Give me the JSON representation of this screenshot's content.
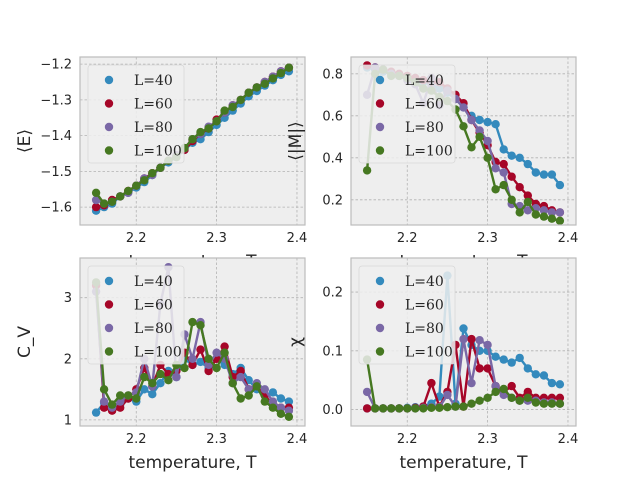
{
  "colors": {
    "c40": "#348ABD",
    "c60": "#A60628",
    "c80": "#7A68A6",
    "c100": "#467821",
    "panel_bg": "#EEEEEE",
    "grid": "#B2B2B2",
    "spine": "#BCBCBC"
  },
  "legend": [
    "L=40",
    "L=60",
    "L=80",
    "L=100"
  ],
  "chart_data": [
    {
      "id": "energy",
      "type": "line",
      "xlabel": "temperature, T",
      "ylabel": "⟨E⟩",
      "xlim": [
        2.13,
        2.41
      ],
      "ylim": [
        -1.65,
        -1.18
      ],
      "xticks": [
        2.2,
        2.3,
        2.4
      ],
      "yticks": [
        -1.6,
        -1.5,
        -1.4,
        -1.3,
        -1.2
      ],
      "ytick_labels": [
        "−1.6",
        "−1.5",
        "−1.4",
        "−1.3",
        "−1.2"
      ],
      "series": [
        {
          "name": "L=40",
          "color": "#348ABD",
          "x": [
            2.15,
            2.16,
            2.17,
            2.18,
            2.19,
            2.2,
            2.21,
            2.22,
            2.23,
            2.24,
            2.25,
            2.26,
            2.27,
            2.28,
            2.29,
            2.3,
            2.31,
            2.32,
            2.33,
            2.34,
            2.35,
            2.36,
            2.37,
            2.38,
            2.39
          ],
          "y": [
            -1.61,
            -1.6,
            -1.59,
            -1.57,
            -1.56,
            -1.545,
            -1.53,
            -1.51,
            -1.49,
            -1.475,
            -1.46,
            -1.44,
            -1.42,
            -1.41,
            -1.39,
            -1.37,
            -1.35,
            -1.33,
            -1.31,
            -1.29,
            -1.275,
            -1.26,
            -1.245,
            -1.23,
            -1.22
          ]
        },
        {
          "name": "L=60",
          "color": "#A60628",
          "x": [
            2.15,
            2.16,
            2.17,
            2.18,
            2.19,
            2.2,
            2.21,
            2.22,
            2.23,
            2.24,
            2.25,
            2.26,
            2.27,
            2.28,
            2.29,
            2.3,
            2.31,
            2.32,
            2.33,
            2.34,
            2.35,
            2.36,
            2.37,
            2.38,
            2.39
          ],
          "y": [
            -1.6,
            -1.595,
            -1.58,
            -1.57,
            -1.555,
            -1.54,
            -1.52,
            -1.505,
            -1.49,
            -1.47,
            -1.455,
            -1.44,
            -1.415,
            -1.395,
            -1.38,
            -1.355,
            -1.335,
            -1.315,
            -1.3,
            -1.28,
            -1.265,
            -1.25,
            -1.235,
            -1.22,
            -1.21
          ]
        },
        {
          "name": "L=80",
          "color": "#7A68A6",
          "x": [
            2.15,
            2.16,
            2.17,
            2.18,
            2.19,
            2.2,
            2.21,
            2.22,
            2.23,
            2.24,
            2.25,
            2.26,
            2.27,
            2.28,
            2.29,
            2.3,
            2.31,
            2.32,
            2.33,
            2.34,
            2.35,
            2.36,
            2.37,
            2.38,
            2.39
          ],
          "y": [
            -1.58,
            -1.59,
            -1.585,
            -1.57,
            -1.56,
            -1.54,
            -1.52,
            -1.51,
            -1.49,
            -1.47,
            -1.455,
            -1.435,
            -1.41,
            -1.395,
            -1.375,
            -1.36,
            -1.335,
            -1.315,
            -1.3,
            -1.28,
            -1.265,
            -1.25,
            -1.235,
            -1.22,
            -1.21
          ]
        },
        {
          "name": "L=100",
          "color": "#467821",
          "x": [
            2.15,
            2.16,
            2.17,
            2.18,
            2.19,
            2.2,
            2.21,
            2.22,
            2.23,
            2.24,
            2.25,
            2.26,
            2.27,
            2.28,
            2.29,
            2.3,
            2.31,
            2.32,
            2.33,
            2.34,
            2.35,
            2.36,
            2.37,
            2.38,
            2.39
          ],
          "y": [
            -1.56,
            -1.59,
            -1.585,
            -1.57,
            -1.555,
            -1.54,
            -1.525,
            -1.505,
            -1.49,
            -1.47,
            -1.46,
            -1.435,
            -1.41,
            -1.39,
            -1.38,
            -1.36,
            -1.33,
            -1.32,
            -1.3,
            -1.28,
            -1.265,
            -1.255,
            -1.24,
            -1.225,
            -1.21
          ]
        }
      ]
    },
    {
      "id": "magnetization",
      "type": "line",
      "xlabel": "temperature, T",
      "ylabel": "⟨|M|⟩",
      "xlim": [
        2.13,
        2.41
      ],
      "ylim": [
        0.08,
        0.88
      ],
      "xticks": [
        2.2,
        2.3,
        2.4
      ],
      "yticks": [
        0.2,
        0.4,
        0.6,
        0.8
      ],
      "ytick_labels": [
        "0.2",
        "0.4",
        "0.6",
        "0.8"
      ],
      "series": [
        {
          "name": "L=40",
          "color": "#348ABD",
          "x": [
            2.15,
            2.16,
            2.17,
            2.18,
            2.19,
            2.2,
            2.21,
            2.22,
            2.23,
            2.24,
            2.25,
            2.26,
            2.27,
            2.28,
            2.29,
            2.3,
            2.31,
            2.32,
            2.33,
            2.34,
            2.35,
            2.36,
            2.37,
            2.38,
            2.39
          ],
          "y": [
            0.83,
            0.82,
            0.81,
            0.8,
            0.79,
            0.78,
            0.77,
            0.76,
            0.75,
            0.73,
            0.71,
            0.68,
            0.64,
            0.6,
            0.58,
            0.57,
            0.56,
            0.44,
            0.41,
            0.4,
            0.37,
            0.33,
            0.32,
            0.32,
            0.27
          ]
        },
        {
          "name": "L=60",
          "color": "#A60628",
          "x": [
            2.15,
            2.16,
            2.17,
            2.18,
            2.19,
            2.2,
            2.21,
            2.22,
            2.23,
            2.24,
            2.25,
            2.26,
            2.27,
            2.28,
            2.29,
            2.3,
            2.31,
            2.32,
            2.33,
            2.34,
            2.35,
            2.36,
            2.37,
            2.38,
            2.39
          ],
          "y": [
            0.84,
            0.83,
            0.82,
            0.81,
            0.8,
            0.79,
            0.78,
            0.77,
            0.76,
            0.76,
            0.73,
            0.7,
            0.66,
            0.58,
            0.52,
            0.46,
            0.38,
            0.37,
            0.31,
            0.26,
            0.22,
            0.18,
            0.17,
            0.15,
            0.14
          ]
        },
        {
          "name": "L=80",
          "color": "#7A68A6",
          "x": [
            2.15,
            2.16,
            2.17,
            2.18,
            2.19,
            2.2,
            2.21,
            2.22,
            2.23,
            2.24,
            2.25,
            2.26,
            2.27,
            2.28,
            2.29,
            2.3,
            2.31,
            2.32,
            2.33,
            2.34,
            2.35,
            2.36,
            2.37,
            2.38,
            2.39
          ],
          "y": [
            0.7,
            0.83,
            0.82,
            0.8,
            0.79,
            0.77,
            0.75,
            0.66,
            0.78,
            0.65,
            0.72,
            0.68,
            0.64,
            0.58,
            0.53,
            0.48,
            0.35,
            0.33,
            0.18,
            0.17,
            0.15,
            0.16,
            0.15,
            0.14,
            0.14
          ]
        },
        {
          "name": "L=100",
          "color": "#467821",
          "x": [
            2.15,
            2.16,
            2.17,
            2.18,
            2.19,
            2.2,
            2.21,
            2.22,
            2.23,
            2.24,
            2.25,
            2.26,
            2.27,
            2.28,
            2.29,
            2.3,
            2.31,
            2.32,
            2.33,
            2.34,
            2.35,
            2.36,
            2.37,
            2.38,
            2.39
          ],
          "y": [
            0.34,
            0.8,
            0.82,
            0.79,
            0.79,
            0.78,
            0.76,
            0.73,
            0.72,
            0.69,
            0.67,
            0.63,
            0.55,
            0.45,
            0.5,
            0.4,
            0.25,
            0.27,
            0.2,
            0.14,
            0.19,
            0.13,
            0.12,
            0.11,
            0.1
          ]
        }
      ]
    },
    {
      "id": "heat_capacity",
      "type": "line",
      "xlabel": "temperature, T",
      "ylabel": "C_V",
      "xlim": [
        2.13,
        2.41
      ],
      "ylim": [
        0.9,
        3.65
      ],
      "xticks": [
        2.2,
        2.3,
        2.4
      ],
      "yticks": [
        1,
        2,
        3
      ],
      "ytick_labels": [
        "1",
        "2",
        "3"
      ],
      "series": [
        {
          "name": "L=40",
          "color": "#348ABD",
          "x": [
            2.15,
            2.16,
            2.17,
            2.18,
            2.19,
            2.2,
            2.21,
            2.22,
            2.23,
            2.24,
            2.25,
            2.26,
            2.27,
            2.28,
            2.29,
            2.3,
            2.31,
            2.32,
            2.33,
            2.34,
            2.35,
            2.36,
            2.37,
            2.38,
            2.39
          ],
          "y": [
            1.12,
            1.28,
            1.18,
            1.25,
            1.35,
            1.3,
            1.5,
            1.42,
            1.6,
            1.8,
            1.7,
            2.0,
            1.9,
            1.95,
            1.85,
            2.0,
            1.9,
            1.75,
            1.85,
            1.65,
            1.5,
            1.4,
            1.45,
            1.35,
            1.3
          ]
        },
        {
          "name": "L=60",
          "color": "#A60628",
          "x": [
            2.15,
            2.16,
            2.17,
            2.18,
            2.19,
            2.2,
            2.21,
            2.22,
            2.23,
            2.24,
            2.25,
            2.26,
            2.27,
            2.28,
            2.29,
            2.3,
            2.31,
            2.32,
            2.33,
            2.34,
            2.35,
            2.36,
            2.37,
            2.38,
            2.39
          ],
          "y": [
            3.2,
            1.2,
            1.15,
            1.2,
            1.35,
            1.5,
            1.85,
            1.55,
            1.9,
            1.75,
            1.8,
            2.1,
            1.9,
            2.15,
            1.8,
            2.0,
            2.2,
            1.7,
            1.8,
            1.5,
            1.55,
            1.4,
            1.25,
            1.2,
            1.2
          ]
        },
        {
          "name": "L=80",
          "color": "#7A68A6",
          "x": [
            2.15,
            2.16,
            2.17,
            2.18,
            2.19,
            2.2,
            2.21,
            2.22,
            2.23,
            2.24,
            2.25,
            2.26,
            2.27,
            2.28,
            2.29,
            2.3,
            2.31,
            2.32,
            2.33,
            2.34,
            2.35,
            2.36,
            2.37,
            2.38,
            2.39
          ],
          "y": [
            3.1,
            1.3,
            1.2,
            1.3,
            1.4,
            1.45,
            2.0,
            1.55,
            2.9,
            3.5,
            1.7,
            2.4,
            2.0,
            2.6,
            1.9,
            2.1,
            2.0,
            1.6,
            1.7,
            1.5,
            1.6,
            1.5,
            1.3,
            1.2,
            1.15
          ]
        },
        {
          "name": "L=100",
          "color": "#467821",
          "x": [
            2.15,
            2.16,
            2.17,
            2.18,
            2.19,
            2.2,
            2.21,
            2.22,
            2.23,
            2.24,
            2.25,
            2.26,
            2.27,
            2.28,
            2.29,
            2.3,
            2.31,
            2.32,
            2.33,
            2.34,
            2.35,
            2.36,
            2.37,
            2.38,
            2.39
          ],
          "y": [
            3.25,
            1.5,
            1.25,
            1.4,
            1.4,
            1.35,
            1.7,
            1.6,
            1.75,
            1.65,
            1.9,
            1.85,
            2.6,
            2.55,
            2.0,
            1.85,
            2.1,
            1.6,
            1.35,
            1.4,
            1.55,
            1.3,
            1.2,
            1.1,
            1.05
          ]
        }
      ]
    },
    {
      "id": "susceptibility",
      "type": "line",
      "xlabel": "temperature, T",
      "ylabel": "χ",
      "xlim": [
        2.13,
        2.41
      ],
      "ylim": [
        -0.028,
        0.258
      ],
      "xticks": [
        2.2,
        2.3,
        2.4
      ],
      "yticks": [
        0.0,
        0.1,
        0.2
      ],
      "ytick_labels": [
        "0.0",
        "0.1",
        "0.2"
      ],
      "series": [
        {
          "name": "L=40",
          "color": "#348ABD",
          "x": [
            2.15,
            2.16,
            2.17,
            2.18,
            2.19,
            2.2,
            2.21,
            2.22,
            2.23,
            2.24,
            2.25,
            2.26,
            2.27,
            2.28,
            2.29,
            2.3,
            2.31,
            2.32,
            2.33,
            2.34,
            2.35,
            2.36,
            2.37,
            2.38,
            2.39
          ],
          "y": [
            0.002,
            0.002,
            0.002,
            0.002,
            0.002,
            0.003,
            0.004,
            0.005,
            0.01,
            0.022,
            0.228,
            0.01,
            0.138,
            0.11,
            0.1,
            0.1,
            0.09,
            0.085,
            0.08,
            0.088,
            0.07,
            0.06,
            0.058,
            0.045,
            0.043
          ]
        },
        {
          "name": "L=60",
          "color": "#A60628",
          "x": [
            2.15,
            2.16,
            2.17,
            2.18,
            2.19,
            2.2,
            2.21,
            2.22,
            2.23,
            2.24,
            2.25,
            2.26,
            2.27,
            2.28,
            2.29,
            2.3,
            2.31,
            2.32,
            2.33,
            2.34,
            2.35,
            2.36,
            2.37,
            2.38,
            2.39
          ],
          "y": [
            0.002,
            0.002,
            0.002,
            0.002,
            0.002,
            0.002,
            0.003,
            0.005,
            0.045,
            0.005,
            0.03,
            0.11,
            0.005,
            0.12,
            0.07,
            0.07,
            0.04,
            0.03,
            0.04,
            0.02,
            0.03,
            0.02,
            0.02,
            0.02,
            0.02
          ]
        },
        {
          "name": "L=80",
          "color": "#7A68A6",
          "x": [
            2.15,
            2.16,
            2.17,
            2.18,
            2.19,
            2.2,
            2.21,
            2.22,
            2.23,
            2.24,
            2.25,
            2.26,
            2.27,
            2.28,
            2.29,
            2.3,
            2.31,
            2.32,
            2.33,
            2.34,
            2.35,
            2.36,
            2.37,
            2.38,
            2.39
          ],
          "y": [
            0.03,
            0.002,
            0.002,
            0.002,
            0.002,
            0.002,
            0.002,
            0.003,
            0.004,
            0.004,
            0.025,
            0.005,
            0.12,
            0.045,
            0.118,
            0.11,
            0.04,
            0.025,
            0.02,
            0.015,
            0.015,
            0.015,
            0.012,
            0.012,
            0.01
          ]
        },
        {
          "name": "L=100",
          "color": "#467821",
          "x": [
            2.15,
            2.16,
            2.17,
            2.18,
            2.19,
            2.2,
            2.21,
            2.22,
            2.23,
            2.24,
            2.25,
            2.26,
            2.27,
            2.28,
            2.29,
            2.3,
            2.31,
            2.32,
            2.33,
            2.34,
            2.35,
            2.36,
            2.37,
            2.38,
            2.39
          ],
          "y": [
            0.085,
            0.002,
            0.002,
            0.002,
            0.002,
            0.002,
            0.002,
            0.002,
            0.003,
            0.003,
            0.004,
            0.005,
            0.005,
            0.01,
            0.015,
            0.02,
            0.03,
            0.035,
            0.02,
            0.015,
            0.02,
            0.012,
            0.01,
            0.01,
            0.01
          ]
        }
      ]
    }
  ]
}
